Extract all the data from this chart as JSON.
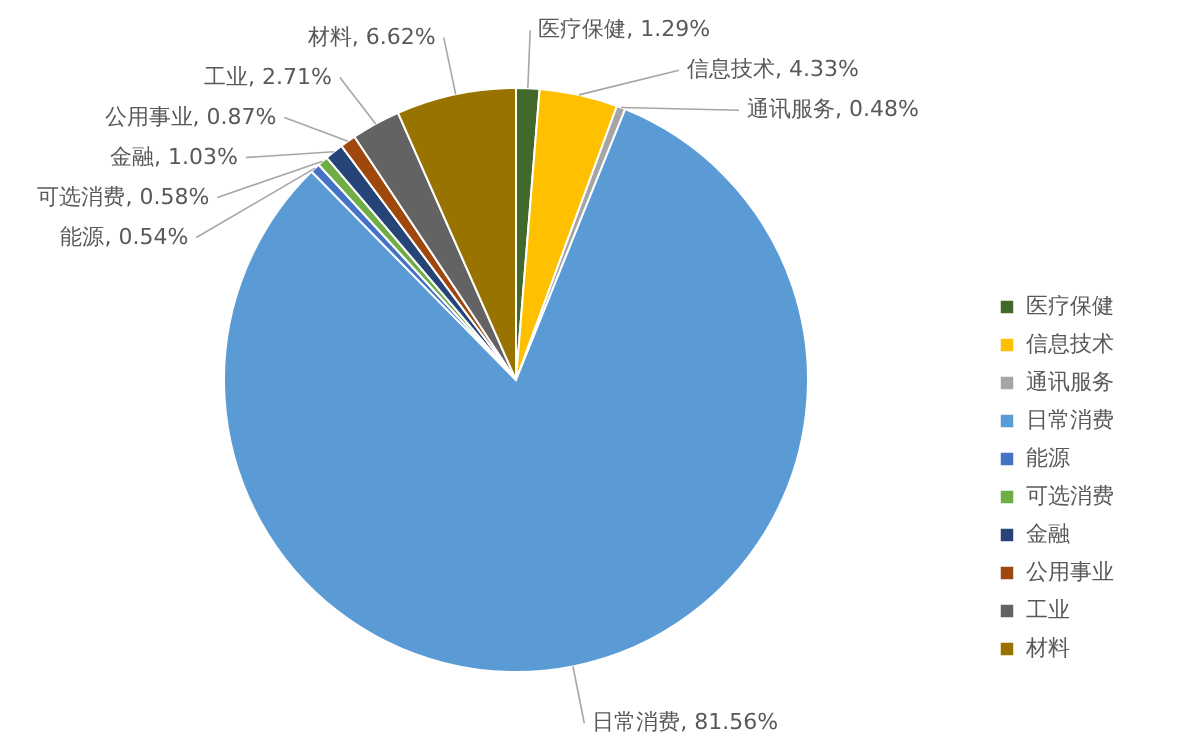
{
  "chart_data": {
    "type": "pie",
    "categories": [
      "医疗保健",
      "信息技术",
      "通讯服务",
      "日常消费",
      "能源",
      "可选消费",
      "金融",
      "公用事业",
      "工业",
      "材料"
    ],
    "values": [
      1.29,
      4.33,
      0.48,
      81.56,
      0.54,
      0.58,
      1.03,
      0.87,
      2.71,
      6.62
    ],
    "value_labels": [
      "医疗保健, 1.29%",
      "信息技术, 4.33%",
      "通讯服务, 0.48%",
      "日常消费, 81.56%",
      "能源, 0.54%",
      "可选消费, 0.58%",
      "金融, 1.03%",
      "公用事业, 0.87%",
      "工业, 2.71%",
      "材料, 6.62%"
    ],
    "colors": [
      "#43682b",
      "#ffc000",
      "#a5a5a5",
      "#5b9bd5",
      "#4472c4",
      "#70ad47",
      "#264478",
      "#9e480e",
      "#636363",
      "#997300"
    ],
    "legend": "right"
  }
}
